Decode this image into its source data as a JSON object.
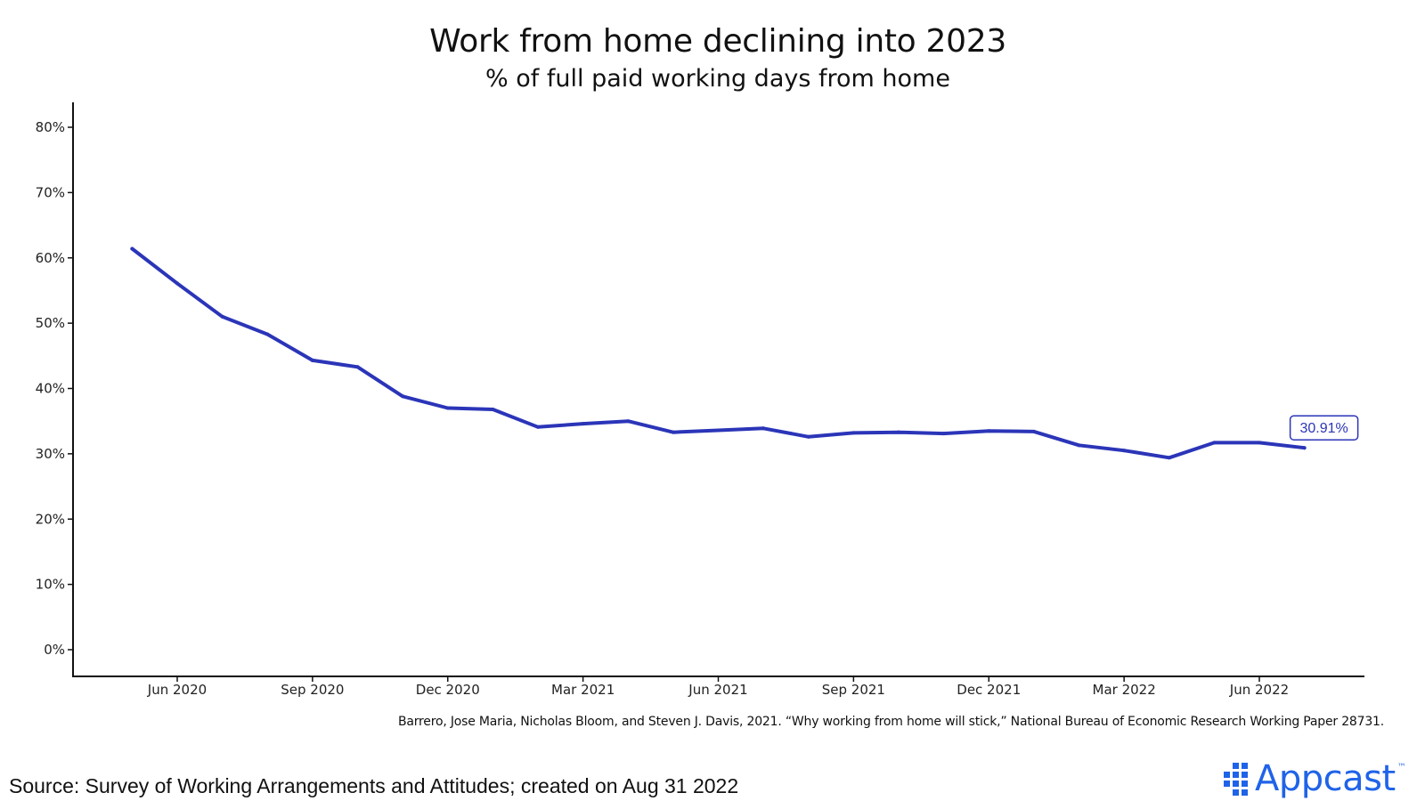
{
  "chart_data": {
    "type": "line",
    "title": "Work from home declining into 2023",
    "subtitle": "% of full paid working days from home",
    "xlabel": "",
    "ylabel": "",
    "x": [
      "2020-05",
      "2020-06",
      "2020-07",
      "2020-08",
      "2020-09",
      "2020-10",
      "2020-11",
      "2020-12",
      "2021-01",
      "2021-02",
      "2021-03",
      "2021-04",
      "2021-05",
      "2021-06",
      "2021-07",
      "2021-08",
      "2021-09",
      "2021-10",
      "2021-11",
      "2021-12",
      "2022-01",
      "2022-02",
      "2022-03",
      "2022-04",
      "2022-05",
      "2022-06",
      "2022-07"
    ],
    "series": [
      {
        "name": "",
        "color": "#2b35b8",
        "values": [
          61.4,
          56.1,
          51.0,
          48.3,
          44.3,
          43.3,
          38.8,
          37.0,
          36.8,
          34.1,
          34.6,
          35.0,
          33.3,
          33.6,
          33.9,
          32.6,
          33.2,
          33.3,
          33.1,
          33.5,
          33.4,
          31.3,
          30.5,
          29.4,
          31.7,
          31.7,
          30.91
        ]
      }
    ],
    "end_label": "30.91%",
    "y_ticks": [
      "0%",
      "10%",
      "20%",
      "30%",
      "40%",
      "50%",
      "60%",
      "70%",
      "80%"
    ],
    "ylim": [
      0,
      80
    ],
    "x_tick_labels": [
      {
        "date": "2020-06",
        "label": "Jun 2020"
      },
      {
        "date": "2020-09",
        "label": "Sep 2020"
      },
      {
        "date": "2020-12",
        "label": "Dec 2020"
      },
      {
        "date": "2021-03",
        "label": "Mar 2021"
      },
      {
        "date": "2021-06",
        "label": "Jun 2021"
      },
      {
        "date": "2021-09",
        "label": "Sep 2021"
      },
      {
        "date": "2021-12",
        "label": "Dec 2021"
      },
      {
        "date": "2022-03",
        "label": "Mar 2022"
      },
      {
        "date": "2022-06",
        "label": "Jun 2022"
      }
    ],
    "grid": false,
    "legend": "none"
  },
  "citation": "Barrero, Jose Maria, Nicholas Bloom, and Steven J. Davis, 2021. “Why working from home will stick,” National Bureau of Economic Research Working Paper 28731.",
  "source": "Source: Survey of Working Arrangements and Attitudes; created on Aug 31 2022",
  "brand": {
    "name": "Appcast",
    "tm": "™",
    "color": "#1f63e8"
  }
}
